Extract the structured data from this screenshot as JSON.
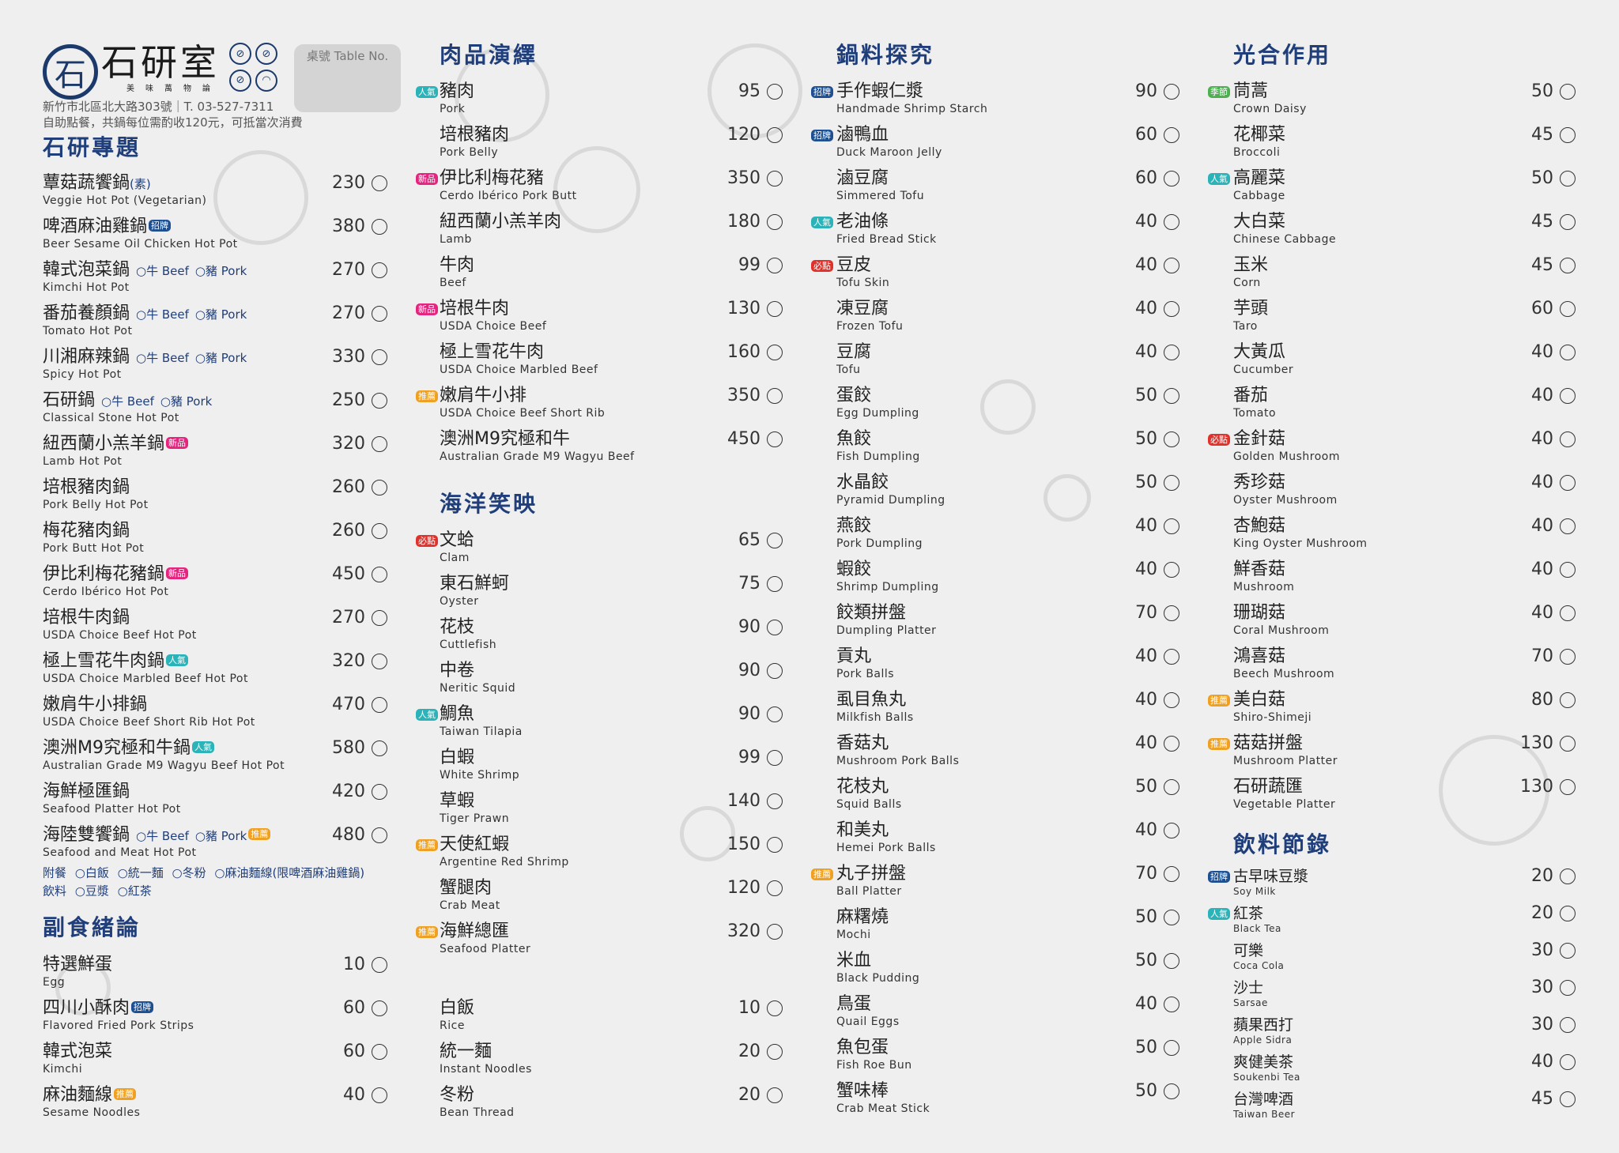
{
  "header": {
    "brand": "石研室",
    "logo_glyph": "石",
    "slogan": "美味萬物論",
    "rule_icons": [
      "no-stroller-icon",
      "no-pets-icon",
      "no-smoking-icon",
      "wifi-icon"
    ],
    "address": "新竹市北區北大路303號｜T. 03-527-7311",
    "note": "自助點餐，共鍋每位需酌收120元，可抵當次消費",
    "table_label": "桌號 Table No."
  },
  "colors": {
    "heading": "#1f3e7a",
    "badges": {
      "人氣": "#2ab3b8",
      "招牌": "#1d4f91",
      "新品": "#e6237e",
      "推薦": "#f0a020",
      "必點": "#e0322c",
      "季節": "#4caf50"
    }
  },
  "sections": {
    "hotpot": {
      "title": "石研專題",
      "items": [
        {
          "zh": "蕈菇蔬饗鍋",
          "suffix": "(素)",
          "en": "Veggie Hot Pot (Vegetarian)",
          "price": "230"
        },
        {
          "zh": "啤酒麻油雞鍋",
          "badge": "招牌",
          "en": "Beer Sesame Oil Chicken Hot Pot",
          "price": "380"
        },
        {
          "zh": "韓式泡菜鍋",
          "options": [
            "牛 Beef",
            "豬 Pork"
          ],
          "en": "Kimchi Hot Pot",
          "price": "270"
        },
        {
          "zh": "番茄養顏鍋",
          "options": [
            "牛 Beef",
            "豬 Pork"
          ],
          "en": "Tomato Hot Pot",
          "price": "270"
        },
        {
          "zh": "川湘麻辣鍋",
          "options": [
            "牛 Beef",
            "豬 Pork"
          ],
          "en": "Spicy Hot Pot",
          "price": "330"
        },
        {
          "zh": "石研鍋",
          "options": [
            "牛 Beef",
            "豬 Pork"
          ],
          "en": "Classical Stone Hot Pot",
          "price": "250"
        },
        {
          "zh": "紐西蘭小羔羊鍋",
          "badge": "新品",
          "en": "Lamb Hot Pot",
          "price": "320"
        },
        {
          "zh": "培根豬肉鍋",
          "en": "Pork Belly Hot Pot",
          "price": "260"
        },
        {
          "zh": "梅花豬肉鍋",
          "en": "Pork Butt Hot Pot",
          "price": "260"
        },
        {
          "zh": "伊比利梅花豬鍋",
          "badge": "新品",
          "en": "Cerdo Ibérico Hot Pot",
          "price": "450"
        },
        {
          "zh": "培根牛肉鍋",
          "en": "USDA Choice Beef Hot Pot",
          "price": "270"
        },
        {
          "zh": "極上雪花牛肉鍋",
          "badge": "人氣",
          "en": "USDA Choice Marbled Beef Hot Pot",
          "price": "320"
        },
        {
          "zh": "嫩肩牛小排鍋",
          "en": "USDA Choice Beef Short Rib Hot Pot",
          "price": "470"
        },
        {
          "zh": "澳洲M9究極和牛鍋",
          "badge": "人氣",
          "en": "Australian Grade M9 Wagyu Beef Hot Pot",
          "price": "580"
        },
        {
          "zh": "海鮮極匯鍋",
          "en": "Seafood Platter Hot Pot",
          "price": "420"
        },
        {
          "zh": "海陸雙饗鍋",
          "options": [
            "牛 Beef",
            "豬 Pork"
          ],
          "badge": "推薦",
          "en": "Seafood and Meat Hot Pot",
          "price": "480"
        }
      ],
      "addons": [
        {
          "label": "附餐",
          "choices": [
            "白飯",
            "統一麵",
            "冬粉",
            "麻油麵線(限啤酒麻油雞鍋)"
          ]
        },
        {
          "label": "飲料",
          "choices": [
            "豆漿",
            "紅茶"
          ]
        }
      ]
    },
    "sides": {
      "title": "副食緒論",
      "items": [
        {
          "zh": "特選鮮蛋",
          "en": "Egg",
          "price": "10"
        },
        {
          "zh": "四川小酥肉",
          "badge": "招牌",
          "en": "Flavored Fried Pork Strips",
          "price": "60"
        },
        {
          "zh": "韓式泡菜",
          "en": "Kimchi",
          "price": "60"
        },
        {
          "zh": "麻油麵線",
          "badge": "推薦",
          "en": "Sesame Noodles",
          "price": "40"
        }
      ]
    },
    "meat": {
      "title": "肉品演繹",
      "items": [
        {
          "zh": "豬肉",
          "badge": "人氣",
          "en": "Pork",
          "price": "95"
        },
        {
          "zh": "培根豬肉",
          "en": "Pork Belly",
          "price": "120"
        },
        {
          "zh": "伊比利梅花豬",
          "badge": "新品",
          "en": "Cerdo Ibérico Pork Butt",
          "price": "350"
        },
        {
          "zh": "紐西蘭小羔羊肉",
          "en": "Lamb",
          "price": "180"
        },
        {
          "zh": "牛肉",
          "en": "Beef",
          "price": "99"
        },
        {
          "zh": "培根牛肉",
          "badge": "新品",
          "en": "USDA Choice Beef",
          "price": "130"
        },
        {
          "zh": "極上雪花牛肉",
          "en": "USDA Choice Marbled Beef",
          "price": "160"
        },
        {
          "zh": "嫩肩牛小排",
          "badge": "推薦",
          "en": "USDA Choice Beef Short Rib",
          "price": "350"
        },
        {
          "zh": "澳洲M9究極和牛",
          "en": "Australian Grade M9 Wagyu Beef",
          "price": "450"
        }
      ]
    },
    "seafood": {
      "title": "海洋笑映",
      "items": [
        {
          "zh": "文蛤",
          "badge": "必點",
          "en": "Clam",
          "price": "65"
        },
        {
          "zh": "東石鮮蚵",
          "en": "Oyster",
          "price": "75"
        },
        {
          "zh": "花枝",
          "en": "Cuttlefish",
          "price": "90"
        },
        {
          "zh": "中卷",
          "en": "Neritic Squid",
          "price": "90"
        },
        {
          "zh": "鯛魚",
          "badge": "人氣",
          "en": "Taiwan Tilapia",
          "price": "90"
        },
        {
          "zh": "白蝦",
          "en": "White Shrimp",
          "price": "99"
        },
        {
          "zh": "草蝦",
          "en": "Tiger Prawn",
          "price": "140"
        },
        {
          "zh": "天使紅蝦",
          "badge": "推薦",
          "en": "Argentine Red Shrimp",
          "price": "150"
        },
        {
          "zh": "蟹腿肉",
          "en": "Crab Meat",
          "price": "120"
        },
        {
          "zh": "海鮮總匯",
          "badge": "推薦",
          "en": "Seafood Platter",
          "price": "320"
        }
      ]
    },
    "staples": {
      "items": [
        {
          "zh": "白飯",
          "en": "Rice",
          "price": "10"
        },
        {
          "zh": "統一麵",
          "en": "Instant Noodles",
          "price": "20"
        },
        {
          "zh": "冬粉",
          "en": "Bean Thread",
          "price": "20"
        }
      ]
    },
    "ingredients": {
      "title": "鍋料探究",
      "items": [
        {
          "zh": "手作蝦仁漿",
          "badge": "招牌",
          "en": "Handmade Shrimp Starch",
          "price": "90"
        },
        {
          "zh": "滷鴨血",
          "badge": "招牌",
          "en": "Duck Maroon Jelly",
          "price": "60"
        },
        {
          "zh": "滷豆腐",
          "en": "Simmered Tofu",
          "price": "60"
        },
        {
          "zh": "老油條",
          "badge": "人氣",
          "en": "Fried Bread Stick",
          "price": "40"
        },
        {
          "zh": "豆皮",
          "badge": "必點",
          "en": "Tofu Skin",
          "price": "40"
        },
        {
          "zh": "凍豆腐",
          "en": "Frozen Tofu",
          "price": "40"
        },
        {
          "zh": "豆腐",
          "en": "Tofu",
          "price": "40"
        },
        {
          "zh": "蛋餃",
          "en": "Egg Dumpling",
          "price": "50"
        },
        {
          "zh": "魚餃",
          "en": "Fish Dumpling",
          "price": "50"
        },
        {
          "zh": "水晶餃",
          "en": "Pyramid Dumpling",
          "price": "50"
        },
        {
          "zh": "燕餃",
          "en": "Pork Dumpling",
          "price": "40"
        },
        {
          "zh": "蝦餃",
          "en": "Shrimp Dumpling",
          "price": "40"
        },
        {
          "zh": "餃類拼盤",
          "en": "Dumpling Platter",
          "price": "70"
        },
        {
          "zh": "貢丸",
          "en": "Pork Balls",
          "price": "40"
        },
        {
          "zh": "虱目魚丸",
          "en": "Milkfish Balls",
          "price": "40"
        },
        {
          "zh": "香菇丸",
          "en": "Mushroom Pork Balls",
          "price": "40"
        },
        {
          "zh": "花枝丸",
          "en": "Squid Balls",
          "price": "50"
        },
        {
          "zh": "和美丸",
          "en": "Hemei Pork Balls",
          "price": "40"
        },
        {
          "zh": "丸子拼盤",
          "badge": "推薦",
          "en": "Ball Platter",
          "price": "70"
        },
        {
          "zh": "麻糬燒",
          "en": "Mochi",
          "price": "50"
        },
        {
          "zh": "米血",
          "en": "Black Pudding",
          "price": "50"
        },
        {
          "zh": "鳥蛋",
          "en": "Quail Eggs",
          "price": "40"
        },
        {
          "zh": "魚包蛋",
          "en": "Fish Roe Bun",
          "price": "50"
        },
        {
          "zh": "蟹味棒",
          "en": "Crab Meat Stick",
          "price": "50"
        }
      ]
    },
    "vegetables": {
      "title": "光合作用",
      "items": [
        {
          "zh": "茼蒿",
          "badge": "季節",
          "en": "Crown Daisy",
          "price": "50"
        },
        {
          "zh": "花椰菜",
          "en": "Broccoli",
          "price": "45"
        },
        {
          "zh": "高麗菜",
          "badge": "人氣",
          "en": "Cabbage",
          "price": "50"
        },
        {
          "zh": "大白菜",
          "en": "Chinese Cabbage",
          "price": "45"
        },
        {
          "zh": "玉米",
          "en": "Corn",
          "price": "45"
        },
        {
          "zh": "芋頭",
          "en": "Taro",
          "price": "60"
        },
        {
          "zh": "大黃瓜",
          "en": "Cucumber",
          "price": "40"
        },
        {
          "zh": "番茄",
          "en": "Tomato",
          "price": "40"
        },
        {
          "zh": "金針菇",
          "badge": "必點",
          "en": "Golden Mushroom",
          "price": "40"
        },
        {
          "zh": "秀珍菇",
          "en": "Oyster Mushroom",
          "price": "40"
        },
        {
          "zh": "杏鮑菇",
          "en": "King Oyster Mushroom",
          "price": "40"
        },
        {
          "zh": "鮮香菇",
          "en": "Mushroom",
          "price": "40"
        },
        {
          "zh": "珊瑚菇",
          "en": "Coral Mushroom",
          "price": "40"
        },
        {
          "zh": "鴻喜菇",
          "en": "Beech Mushroom",
          "price": "70"
        },
        {
          "zh": "美白菇",
          "badge": "推薦",
          "en": "Shiro-Shimeji",
          "price": "80"
        },
        {
          "zh": "菇菇拼盤",
          "badge": "推薦",
          "en": "Mushroom Platter",
          "price": "130"
        },
        {
          "zh": "石研蔬匯",
          "en": "Vegetable Platter",
          "price": "130"
        }
      ]
    },
    "drinks": {
      "title": "飲料節錄",
      "items": [
        {
          "zh": "古早味豆漿",
          "badge": "招牌",
          "en": "Soy Milk",
          "price": "20"
        },
        {
          "zh": "紅茶",
          "badge": "人氣",
          "en": "Black Tea",
          "price": "20"
        },
        {
          "zh": "可樂",
          "en": "Coca Cola",
          "price": "30"
        },
        {
          "zh": "沙士",
          "en": "Sarsae",
          "price": "30"
        },
        {
          "zh": "蘋果西打",
          "en": "Apple Sidra",
          "price": "30"
        },
        {
          "zh": "爽健美茶",
          "en": "Soukenbi Tea",
          "price": "40"
        },
        {
          "zh": "台灣啤酒",
          "en": "Taiwan Beer",
          "price": "45"
        }
      ]
    }
  }
}
